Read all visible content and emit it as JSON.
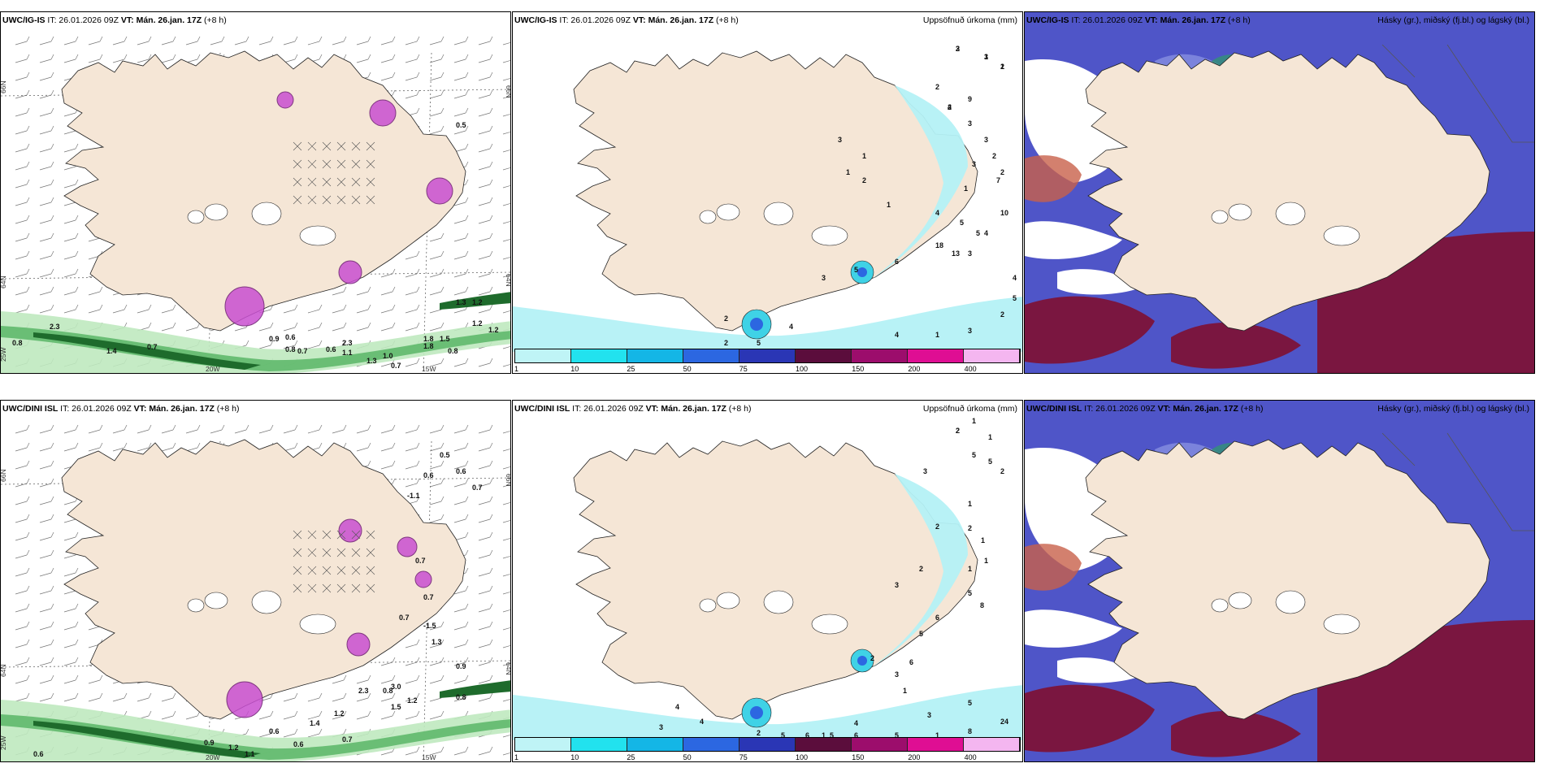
{
  "rows": [
    {
      "model": "UWC/IG-IS",
      "it_label": "IT: 26.01.2026 09Z",
      "vt_label": "VT: Mán. 26.jan. 17Z",
      "offset": "(+8 h)",
      "wind_labels": [
        "0.8",
        "0.7",
        "1.2",
        "0.9",
        "0.8",
        "0.6",
        "0.7",
        "0.6",
        "1.1",
        "1.3",
        "1.0",
        "0.7",
        "1.8",
        "1.2",
        "1.5",
        "1.3",
        "2.3",
        "1.4",
        "0.8",
        "0.5",
        "1.2",
        "1.8",
        "2.3"
      ],
      "precip_labels": [
        "3",
        "1",
        "1",
        "4",
        "9",
        "2",
        "3",
        "3",
        "2",
        "2",
        "3",
        "3",
        "1",
        "4",
        "1",
        "5",
        "5",
        "3",
        "7",
        "2",
        "1",
        "1",
        "10",
        "4",
        "13",
        "18",
        "6",
        "5",
        "3",
        "5",
        "2",
        "2",
        "4",
        "4",
        "1",
        "3",
        "2",
        "5",
        "4",
        "2",
        "3",
        "2",
        "2"
      ]
    },
    {
      "model": "UWC/DINI ISL",
      "it_label": "IT: 26.01.2026 09Z",
      "vt_label": "VT: Mán. 26.jan. 17Z",
      "offset": "(+8 h)",
      "wind_labels": [
        "0.6",
        "0.5",
        "0.6",
        "0.7",
        "0.6",
        "-1.1",
        "0.7",
        "0.7",
        "0.7",
        "-1.5",
        "1.3",
        "0.9",
        "0.8",
        "0.8",
        "1.2",
        "1.5",
        "1.1",
        "1.2",
        "0.9",
        "0.6",
        "1.4",
        "1.2",
        "0.7",
        "0.6",
        "2.3",
        "3.0"
      ],
      "precip_labels": [
        "2",
        "1",
        "1",
        "5",
        "5",
        "2",
        "3",
        "1",
        "2",
        "2",
        "1",
        "1",
        "1",
        "2",
        "3",
        "5",
        "8",
        "6",
        "5",
        "2",
        "3",
        "6",
        "1",
        "3",
        "5",
        "24",
        "8",
        "1",
        "5",
        "4",
        "1",
        "2",
        "5",
        "6",
        "5",
        "6",
        "3",
        "4",
        "4",
        "2"
      ]
    }
  ],
  "panel_titles": {
    "precip": "Uppsöfnuð úrkoma (mm)",
    "clouds": "Hásky (gr.), miðský (fj.bl.) og lágský (bl.)"
  },
  "axis_labels": {
    "lat_66": "66N",
    "lat_64": "64N",
    "lon_25": "25W",
    "lon_20": "20W",
    "lon_15": "15W",
    "lon_10": "10W",
    "lon_right_66": "66N",
    "lon_right_64": "64N"
  },
  "legend": {
    "ticks": [
      "1",
      "10",
      "25",
      "50",
      "75",
      "100",
      "150",
      "200",
      "400"
    ],
    "colors": [
      "#bff4f6",
      "#22e2ee",
      "#14b6e6",
      "#2c67e1",
      "#2a36b5",
      "#5b0d3c",
      "#9c0d6c",
      "#df0e93",
      "#f4b6f0"
    ]
  },
  "colors": {
    "land": "#f5e6d6",
    "land_shaded": "#e8d4c2",
    "wind_green_light": "#bfe9bf",
    "wind_green_mid": "#5fb96b",
    "wind_green_dark": "#1e6b2c",
    "magenta": "#c94fd1",
    "precip_light": "#b4f1f5",
    "precip_mid": "#3fd2e6",
    "cloud_blue": "#4f55c8",
    "cloud_blue_light": "#7b83dc",
    "cloud_green": "#2f9b6a",
    "cloud_maroon": "#7a1640",
    "cloud_red": "#c8604a"
  }
}
